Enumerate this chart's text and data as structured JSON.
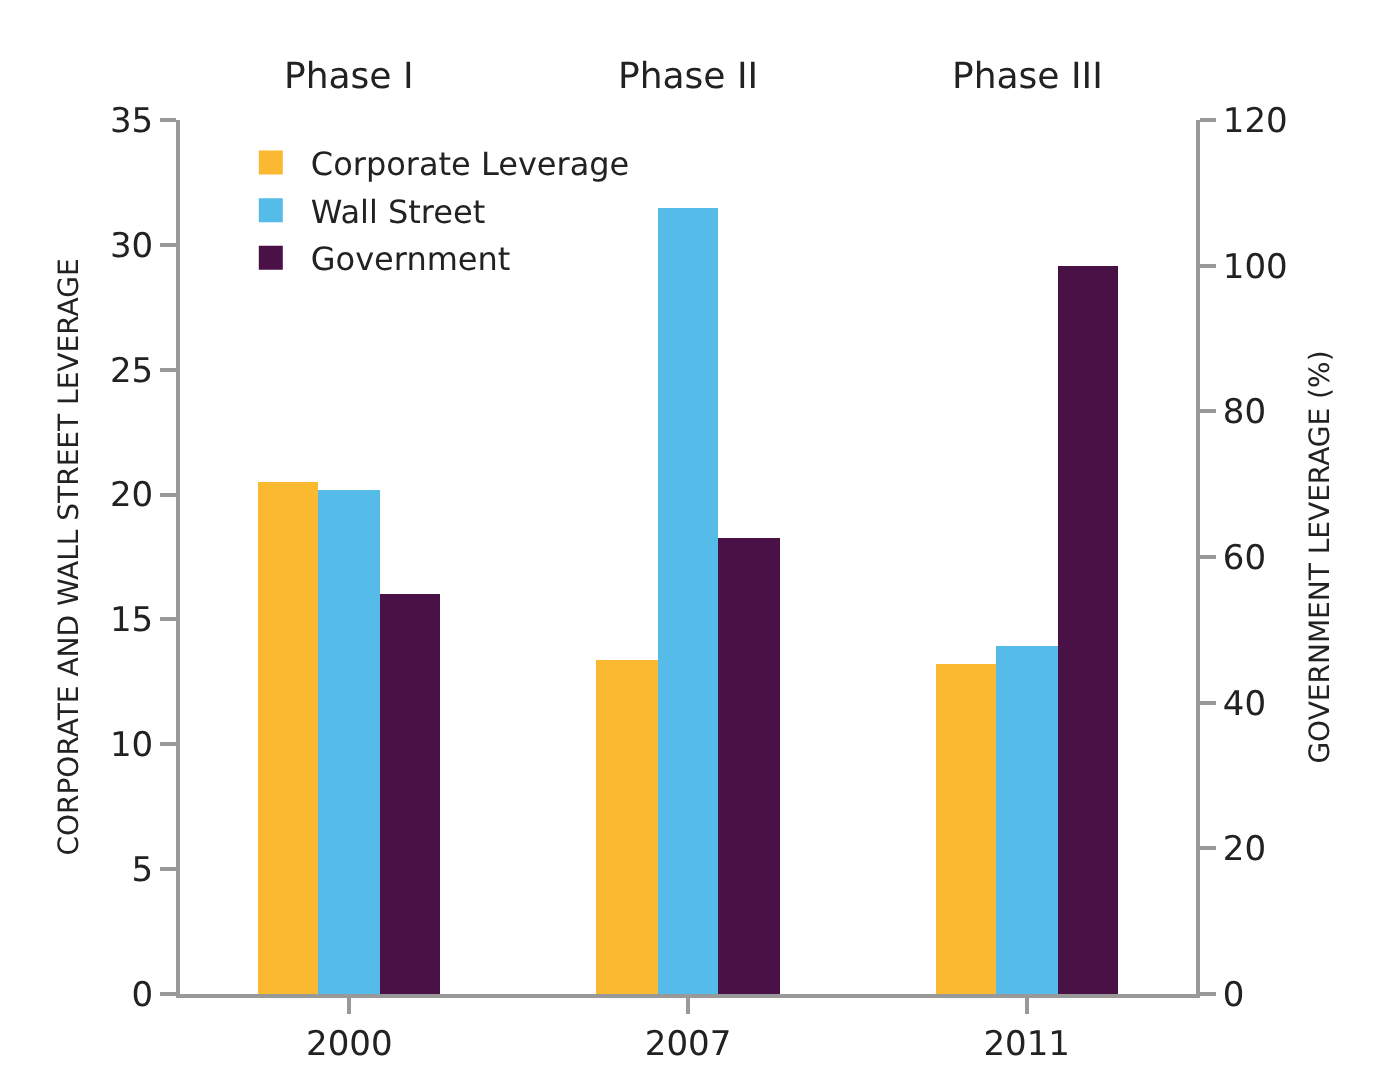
{
  "chart_data": {
    "type": "bar",
    "categories": [
      "2000",
      "2007",
      "2011"
    ],
    "ylabel": "CORPORATE AND WALL STREET LEVERAGE",
    "y2label": "GOVERNMENT LEVERAGE (%)",
    "series": [
      {
        "name": "Corporate Leverage",
        "color": "#fbb831",
        "values": [
          20.5,
          13.4,
          13.2
        ]
      },
      {
        "name": "Wall Street",
        "color": "#55bbe8",
        "values": [
          20.2,
          31.5,
          13.9
        ]
      },
      {
        "name": "Government",
        "color": "#4a1146",
        "values": [
          55,
          62.5,
          100
        ],
        "axis": "y2"
      }
    ],
    "ylim": [
      0,
      35
    ],
    "yticks": [
      0,
      5,
      10,
      15,
      20,
      25,
      30,
      35
    ],
    "y2lim": [
      0,
      120
    ],
    "y2ticks": [
      0,
      20,
      40,
      60,
      80,
      100,
      120
    ],
    "annotations": [
      "Phase I",
      "Phase II",
      "Phase III"
    ],
    "legend": "top left"
  }
}
